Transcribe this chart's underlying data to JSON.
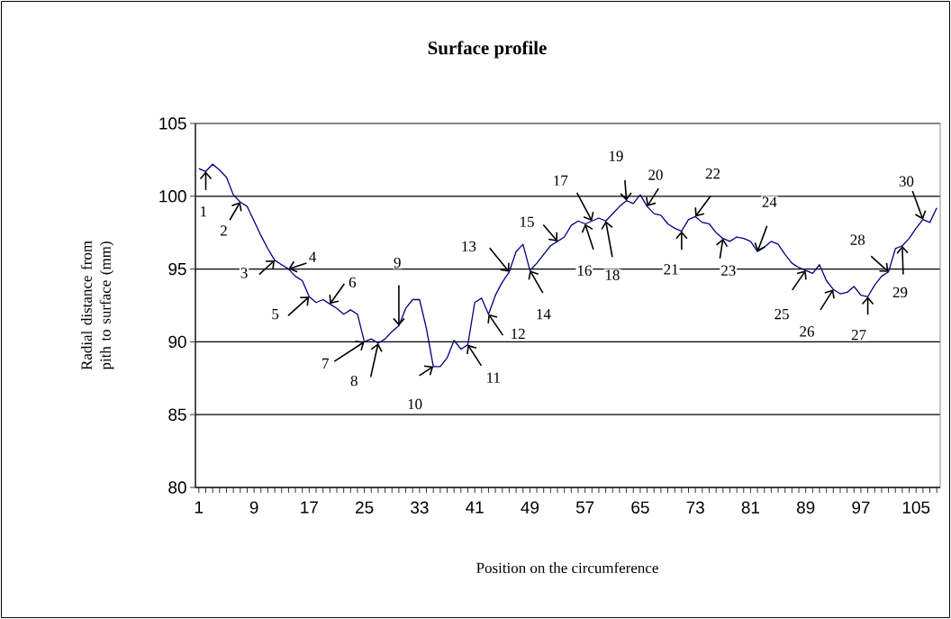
{
  "chart_data": {
    "type": "line",
    "title": "Surface profile",
    "xlabel": "Position on the circumference",
    "ylabel": "Radial distance from pith to surface (mm)",
    "x": [
      1,
      2,
      3,
      4,
      5,
      6,
      7,
      8,
      9,
      10,
      11,
      12,
      13,
      14,
      15,
      16,
      17,
      18,
      19,
      20,
      21,
      22,
      23,
      24,
      25,
      26,
      27,
      28,
      29,
      30,
      31,
      32,
      33,
      34,
      35,
      36,
      37,
      38,
      39,
      40,
      41,
      42,
      43,
      44,
      45,
      46,
      47,
      48,
      49,
      50,
      51,
      52,
      53,
      54,
      55,
      56,
      57,
      58,
      59,
      60,
      61,
      62,
      63,
      64,
      65,
      66,
      67,
      68,
      69,
      70,
      71,
      72,
      73,
      74,
      75,
      76,
      77,
      78,
      79,
      80,
      81,
      82,
      83,
      84,
      85,
      86,
      87,
      88,
      89,
      90,
      91,
      92,
      93,
      94,
      95,
      96,
      97,
      98,
      99,
      100,
      101,
      102,
      103,
      104,
      105,
      106,
      107,
      108
    ],
    "series": [
      {
        "color": "#000080",
        "values": [
          101.9,
          101.7,
          102.2,
          101.8,
          101.3,
          100.1,
          99.6,
          99.3,
          98.3,
          97.3,
          96.4,
          95.6,
          95.3,
          95.0,
          94.5,
          94.2,
          93.1,
          92.7,
          92.9,
          92.6,
          92.3,
          91.9,
          92.2,
          91.9,
          90.0,
          90.2,
          89.9,
          90.2,
          90.7,
          91.1,
          92.3,
          92.9,
          92.9,
          90.9,
          88.3,
          88.3,
          88.9,
          90.1,
          89.5,
          89.8,
          92.7,
          93.0,
          91.9,
          93.2,
          94.1,
          94.8,
          96.2,
          96.7,
          94.9,
          95.4,
          96.0,
          96.6,
          96.9,
          97.2,
          98.0,
          98.3,
          98.1,
          98.3,
          98.5,
          98.3,
          98.8,
          99.3,
          99.7,
          99.5,
          100.1,
          99.3,
          98.8,
          98.7,
          98.1,
          97.8,
          97.6,
          98.4,
          98.6,
          98.2,
          98.1,
          97.5,
          97.1,
          96.9,
          97.2,
          97.1,
          96.9,
          96.2,
          96.5,
          96.9,
          96.7,
          96.0,
          95.4,
          95.1,
          94.9,
          94.7,
          95.3,
          94.2,
          93.6,
          93.3,
          93.4,
          93.8,
          93.2,
          93.1,
          93.9,
          94.5,
          94.8,
          96.4,
          96.6,
          97.1,
          97.8,
          98.4,
          98.2,
          99.2
        ]
      }
    ],
    "xlim": [
      0.5,
      108.5
    ],
    "xticks": [
      1,
      {
        "value": 2,
        "label": null
      },
      {
        "value": 3,
        "label": null
      },
      {
        "value": 4,
        "label": null
      },
      {
        "value": 5,
        "label": null
      },
      {
        "value": 6,
        "label": null
      },
      {
        "value": 7,
        "label": null
      },
      {
        "value": 8,
        "label": null
      },
      9,
      {
        "value": 10,
        "label": null
      },
      {
        "value": 11,
        "label": null
      },
      {
        "value": 12,
        "label": null
      },
      {
        "value": 13,
        "label": null
      },
      {
        "value": 14,
        "label": null
      },
      {
        "value": 15,
        "label": null
      },
      {
        "value": 16,
        "label": null
      },
      17,
      {
        "value": 18,
        "label": null
      },
      {
        "value": 19,
        "label": null
      },
      {
        "value": 20,
        "label": null
      },
      {
        "value": 21,
        "label": null
      },
      {
        "value": 22,
        "label": null
      },
      {
        "value": 23,
        "label": null
      },
      {
        "value": 24,
        "label": null
      },
      25,
      {
        "value": 26,
        "label": null
      },
      {
        "value": 27,
        "label": null
      },
      {
        "value": 28,
        "label": null
      },
      {
        "value": 29,
        "label": null
      },
      {
        "value": 30,
        "label": null
      },
      {
        "value": 31,
        "label": null
      },
      {
        "value": 32,
        "label": null
      },
      33,
      {
        "value": 34,
        "label": null
      },
      {
        "value": 35,
        "label": null
      },
      {
        "value": 36,
        "label": null
      },
      {
        "value": 37,
        "label": null
      },
      {
        "value": 38,
        "label": null
      },
      {
        "value": 39,
        "label": null
      },
      {
        "value": 40,
        "label": null
      },
      41,
      {
        "value": 42,
        "label": null
      },
      {
        "value": 43,
        "label": null
      },
      {
        "value": 44,
        "label": null
      },
      {
        "value": 45,
        "label": null
      },
      {
        "value": 46,
        "label": null
      },
      {
        "value": 47,
        "label": null
      },
      {
        "value": 48,
        "label": null
      },
      49,
      {
        "value": 50,
        "label": null
      },
      {
        "value": 51,
        "label": null
      },
      {
        "value": 52,
        "label": null
      },
      {
        "value": 53,
        "label": null
      },
      {
        "value": 54,
        "label": null
      },
      {
        "value": 55,
        "label": null
      },
      {
        "value": 56,
        "label": null
      },
      57,
      {
        "value": 58,
        "label": null
      },
      {
        "value": 59,
        "label": null
      },
      {
        "value": 60,
        "label": null
      },
      {
        "value": 61,
        "label": null
      },
      {
        "value": 62,
        "label": null
      },
      {
        "value": 63,
        "label": null
      },
      {
        "value": 64,
        "label": null
      },
      65,
      {
        "value": 66,
        "label": null
      },
      {
        "value": 67,
        "label": null
      },
      {
        "value": 68,
        "label": null
      },
      {
        "value": 69,
        "label": null
      },
      {
        "value": 70,
        "label": null
      },
      {
        "value": 71,
        "label": null
      },
      {
        "value": 72,
        "label": null
      },
      73,
      {
        "value": 74,
        "label": null
      },
      {
        "value": 75,
        "label": null
      },
      {
        "value": 76,
        "label": null
      },
      {
        "value": 77,
        "label": null
      },
      {
        "value": 78,
        "label": null
      },
      {
        "value": 79,
        "label": null
      },
      {
        "value": 80,
        "label": null
      },
      81,
      {
        "value": 82,
        "label": null
      },
      {
        "value": 83,
        "label": null
      },
      {
        "value": 84,
        "label": null
      },
      {
        "value": 85,
        "label": null
      },
      {
        "value": 86,
        "label": null
      },
      {
        "value": 87,
        "label": null
      },
      {
        "value": 88,
        "label": null
      },
      89,
      {
        "value": 90,
        "label": null
      },
      {
        "value": 91,
        "label": null
      },
      {
        "value": 92,
        "label": null
      },
      {
        "value": 93,
        "label": null
      },
      {
        "value": 94,
        "label": null
      },
      {
        "value": 95,
        "label": null
      },
      {
        "value": 96,
        "label": null
      },
      97,
      {
        "value": 98,
        "label": null
      },
      {
        "value": 99,
        "label": null
      },
      {
        "value": 100,
        "label": null
      },
      {
        "value": 101,
        "label": null
      },
      {
        "value": 102,
        "label": null
      },
      {
        "value": 103,
        "label": null
      },
      {
        "value": 104,
        "label": null
      },
      105,
      {
        "value": 106,
        "label": null
      },
      {
        "value": 107,
        "label": null
      },
      {
        "value": 108,
        "label": null
      }
    ],
    "ylim": [
      80,
      105
    ],
    "yticks": [
      80,
      85,
      90,
      95,
      100,
      105
    ],
    "grid": "y",
    "annotations": [
      {
        "text": "1",
        "x": 2,
        "y": 101.7
      },
      {
        "text": "2",
        "x": 7,
        "y": 99.6
      },
      {
        "text": "3",
        "x": 12,
        "y": 95.6
      },
      {
        "text": "4",
        "x": 14,
        "y": 95.0
      },
      {
        "text": "5",
        "x": 17,
        "y": 93.1
      },
      {
        "text": "6",
        "x": 20,
        "y": 92.6
      },
      {
        "text": "7",
        "x": 25,
        "y": 90.0
      },
      {
        "text": "8",
        "x": 27,
        "y": 89.9
      },
      {
        "text": "9",
        "x": 30,
        "y": 91.1
      },
      {
        "text": "10",
        "x": 35,
        "y": 88.3
      },
      {
        "text": "11",
        "x": 40,
        "y": 89.8
      },
      {
        "text": "12",
        "x": 43,
        "y": 91.9
      },
      {
        "text": "13",
        "x": 46,
        "y": 94.8
      },
      {
        "text": "14",
        "x": 49,
        "y": 94.9
      },
      {
        "text": "15",
        "x": 53,
        "y": 96.9
      },
      {
        "text": "16",
        "x": 57,
        "y": 98.1
      },
      {
        "text": "17",
        "x": 58,
        "y": 98.3
      },
      {
        "text": "18",
        "x": 60,
        "y": 98.3
      },
      {
        "text": "19",
        "x": 63,
        "y": 99.7
      },
      {
        "text": "20",
        "x": 66,
        "y": 99.3
      },
      {
        "text": "21",
        "x": 71,
        "y": 97.6
      },
      {
        "text": "22",
        "x": 73,
        "y": 98.6
      },
      {
        "text": "23",
        "x": 77,
        "y": 97.1
      },
      {
        "text": "24",
        "x": 82,
        "y": 96.2
      },
      {
        "text": "25",
        "x": 89,
        "y": 94.9
      },
      {
        "text": "26",
        "x": 93,
        "y": 93.6
      },
      {
        "text": "27",
        "x": 98,
        "y": 93.1
      },
      {
        "text": "28",
        "x": 101,
        "y": 94.8
      },
      {
        "text": "29",
        "x": 103,
        "y": 96.6
      },
      {
        "text": "30",
        "x": 106,
        "y": 98.4
      }
    ]
  }
}
